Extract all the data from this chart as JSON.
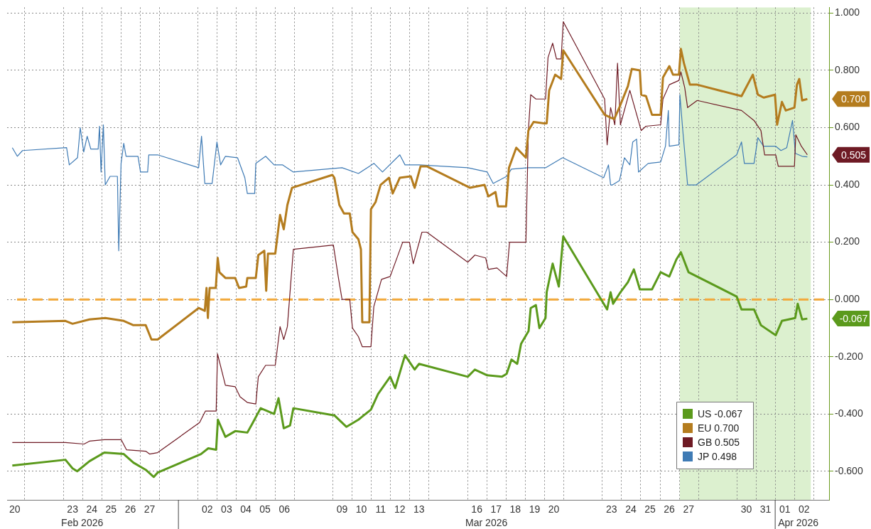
{
  "chart_data": {
    "type": "line",
    "xlim": [
      "2026-02-20T02:24",
      "2026-04-03T19:12"
    ],
    "xticks": [
      {
        "value": "2026-02-20T12:00",
        "label": "20"
      },
      {
        "value": "2026-02-23T12:00",
        "label": "23"
      },
      {
        "value": "2026-02-24T12:00",
        "label": "24"
      },
      {
        "value": "2026-02-25T12:00",
        "label": "25"
      },
      {
        "value": "2026-02-26T12:00",
        "label": "26"
      },
      {
        "value": "2026-02-27T12:00",
        "label": "27"
      },
      {
        "value": "2026-03-02T12:00",
        "label": "02"
      },
      {
        "value": "2026-03-03T12:00",
        "label": "03"
      },
      {
        "value": "2026-03-04T12:00",
        "label": "04"
      },
      {
        "value": "2026-03-05T12:00",
        "label": "05"
      },
      {
        "value": "2026-03-06T12:00",
        "label": "06"
      },
      {
        "value": "2026-03-09T12:00",
        "label": "09"
      },
      {
        "value": "2026-03-10T12:00",
        "label": "10"
      },
      {
        "value": "2026-03-11T12:00",
        "label": "11"
      },
      {
        "value": "2026-03-12T12:00",
        "label": "12"
      },
      {
        "value": "2026-03-13T12:00",
        "label": "13"
      },
      {
        "value": "2026-03-16T12:00",
        "label": "16"
      },
      {
        "value": "2026-03-17T12:00",
        "label": "17"
      },
      {
        "value": "2026-03-18T12:00",
        "label": "18"
      },
      {
        "value": "2026-03-19T12:00",
        "label": "19"
      },
      {
        "value": "2026-03-20T12:00",
        "label": "20"
      },
      {
        "value": "2026-03-23T12:00",
        "label": "23"
      },
      {
        "value": "2026-03-24T12:00",
        "label": "24"
      },
      {
        "value": "2026-03-25T12:00",
        "label": "25"
      },
      {
        "value": "2026-03-26T12:00",
        "label": "26"
      },
      {
        "value": "2026-03-27T12:00",
        "label": "27"
      },
      {
        "value": "2026-03-30T12:00",
        "label": "30"
      },
      {
        "value": "2026-03-31T12:00",
        "label": "31"
      },
      {
        "value": "2026-04-01T12:00",
        "label": "01"
      },
      {
        "value": "2026-04-02T12:00",
        "label": "02"
      }
    ],
    "ylim": [
      -0.7,
      1.02
    ],
    "yticks": [
      {
        "value": -0.6,
        "label": "-0.600"
      },
      {
        "value": -0.4,
        "label": "-0.400"
      },
      {
        "value": -0.2,
        "label": "-0.200"
      },
      {
        "value": 0,
        "label": "0.000"
      },
      {
        "value": 0.2,
        "label": "0.200"
      },
      {
        "value": 0.4,
        "label": "0.400"
      },
      {
        "value": 0.6,
        "label": "0.600"
      },
      {
        "value": 0.8,
        "label": "0.800"
      },
      {
        "value": 1,
        "label": "1.000"
      }
    ],
    "grid": true,
    "legend": "bottom right",
    "marker": "none",
    "series": [
      {
        "name": "US -0.067",
        "color": "#5b9a1c",
        "x": [
          "2026-02-20T08:53",
          "2026-02-23T03:07",
          "2026-02-23T12:00",
          "2026-02-23T17:46",
          "2026-02-24T09:07",
          "2026-02-25T03:36",
          "2026-02-26T03:50",
          "2026-02-26T15:50",
          "2026-02-27T07:12",
          "2026-02-27T17:17",
          "2026-02-27T22:05",
          "2026-03-02T04:05",
          "2026-03-02T13:12",
          "2026-03-02T23:02",
          "2026-03-03T01:12",
          "2026-03-03T10:34",
          "2026-03-03T22:48",
          "2026-03-04T13:55",
          "2026-03-04T19:55",
          "2026-03-05T06:29",
          "2026-03-05T23:17",
          "2026-03-06T04:48",
          "2026-03-06T11:17",
          "2026-03-06T19:12",
          "2026-03-06T23:17",
          "2026-03-09T02:24",
          "2026-03-09T17:31",
          "2026-03-10T08:24",
          "2026-03-11T00:00",
          "2026-03-11T08:53",
          "2026-03-12T00:00",
          "2026-03-12T06:14",
          "2026-03-12T18:29",
          "2026-03-13T06:29",
          "2026-03-13T12:00",
          "2026-03-16T00:43",
          "2026-03-16T09:36",
          "2026-03-17T00:58",
          "2026-03-17T19:12",
          "2026-03-18T01:12",
          "2026-03-18T07:12",
          "2026-03-18T14:24",
          "2026-03-18T19:12",
          "2026-03-19T04:34",
          "2026-03-19T07:12",
          "2026-03-19T13:41",
          "2026-03-19T18:00",
          "2026-03-20T01:41",
          "2026-03-20T03:07",
          "2026-03-20T10:34",
          "2026-03-20T18:14",
          "2026-03-20T23:46",
          "2026-03-23T01:12",
          "2026-03-23T06:29",
          "2026-03-23T10:48",
          "2026-03-23T13:55",
          "2026-03-23T23:02",
          "2026-03-24T08:24",
          "2026-03-24T15:50",
          "2026-03-24T23:17",
          "2026-03-25T14:24",
          "2026-03-26T01:12",
          "2026-03-26T12:00",
          "2026-03-26T20:53",
          "2026-03-27T02:24",
          "2026-03-27T12:00",
          "2026-03-30T00:00",
          "2026-03-30T06:00",
          "2026-03-30T21:36",
          "2026-03-31T06:14",
          "2026-04-01T00:43",
          "2026-04-01T08:24",
          "2026-04-02T00:58",
          "2026-04-02T04:05",
          "2026-04-02T09:36",
          "2026-04-02T16:05"
        ],
        "values": [
          -0.58,
          -0.56,
          -0.59,
          -0.6,
          -0.565,
          -0.535,
          -0.54,
          -0.57,
          -0.595,
          -0.62,
          -0.605,
          -0.54,
          -0.52,
          -0.525,
          -0.42,
          -0.48,
          -0.46,
          -0.465,
          -0.435,
          -0.38,
          -0.4,
          -0.345,
          -0.45,
          -0.44,
          -0.38,
          -0.405,
          -0.445,
          -0.42,
          -0.385,
          -0.33,
          -0.27,
          -0.31,
          -0.195,
          -0.245,
          -0.225,
          -0.27,
          -0.245,
          -0.265,
          -0.27,
          -0.26,
          -0.21,
          -0.225,
          -0.155,
          -0.11,
          -0.03,
          -0.02,
          -0.1,
          -0.065,
          0.025,
          0.125,
          0.045,
          0.22,
          -0.01,
          -0.035,
          0.025,
          -0.015,
          0.025,
          0.06,
          0.105,
          0.035,
          0.035,
          0.095,
          0.08,
          0.14,
          0.165,
          0.095,
          0.01,
          -0.035,
          -0.035,
          -0.09,
          -0.125,
          -0.075,
          -0.065,
          -0.015,
          -0.07,
          -0.067
        ]
      },
      {
        "name": "EU 0.700",
        "color": "#b47c1e",
        "x": [
          "2026-02-20T08:53",
          "2026-02-23T03:07",
          "2026-02-23T12:00",
          "2026-02-24T09:07",
          "2026-02-25T04:48",
          "2026-02-26T03:50",
          "2026-02-26T15:50",
          "2026-02-27T07:12",
          "2026-02-27T14:24",
          "2026-02-27T22:05",
          "2026-03-02T01:12",
          "2026-03-02T08:53",
          "2026-03-02T11:02",
          "2026-03-02T12:43",
          "2026-03-02T14:53",
          "2026-03-02T22:34",
          "2026-03-03T00:58",
          "2026-03-03T03:07",
          "2026-03-03T10:34",
          "2026-03-03T22:48",
          "2026-03-04T03:36",
          "2026-03-04T12:29",
          "2026-03-04T13:55",
          "2026-03-05T00:29",
          "2026-03-05T03:36",
          "2026-03-05T11:02",
          "2026-03-05T13:26",
          "2026-03-05T15:36",
          "2026-03-06T00:43",
          "2026-03-06T06:43",
          "2026-03-06T11:17",
          "2026-03-06T15:50",
          "2026-03-06T21:36",
          "2026-03-09T00:00",
          "2026-03-09T02:24",
          "2026-03-09T08:38",
          "2026-03-09T14:24",
          "2026-03-09T21:36",
          "2026-03-10T00:58",
          "2026-03-10T08:24",
          "2026-03-10T11:31",
          "2026-03-10T13:12",
          "2026-03-10T22:05",
          "2026-03-11T00:00",
          "2026-03-11T05:46",
          "2026-03-11T12:00",
          "2026-03-11T22:34",
          "2026-03-12T03:07",
          "2026-03-12T12:00",
          "2026-03-13T01:41",
          "2026-03-13T06:29",
          "2026-03-13T13:55",
          "2026-03-13T21:36",
          "2026-03-16T03:36",
          "2026-03-16T21:36",
          "2026-03-17T02:24",
          "2026-03-17T11:17",
          "2026-03-17T14:24",
          "2026-03-18T00:29",
          "2026-03-18T04:05",
          "2026-03-18T13:12",
          "2026-03-19T01:12",
          "2026-03-19T04:19",
          "2026-03-19T10:48",
          "2026-03-20T00:00",
          "2026-03-20T03:07",
          "2026-03-20T06:14",
          "2026-03-20T13:41",
          "2026-03-20T21:07",
          "2026-03-20T23:46",
          "2026-03-23T03:22",
          "2026-03-23T10:48",
          "2026-03-23T15:22",
          "2026-03-23T21:36",
          "2026-03-24T08:24",
          "2026-03-24T13:12",
          "2026-03-24T23:17",
          "2026-03-25T00:58",
          "2026-03-25T06:58",
          "2026-03-25T14:24",
          "2026-03-26T01:12",
          "2026-03-26T04:05",
          "2026-03-26T12:00",
          "2026-03-26T16:34",
          "2026-03-27T00:00",
          "2026-03-27T02:24",
          "2026-03-27T06:14",
          "2026-03-27T13:41",
          "2026-03-27T22:48",
          "2026-03-30T06:00",
          "2026-03-30T20:10",
          "2026-03-31T02:24",
          "2026-03-31T09:36",
          "2026-03-31T23:46",
          "2026-04-01T02:24",
          "2026-04-01T08:24",
          "2026-04-01T13:12",
          "2026-04-02T00:00",
          "2026-04-02T03:07",
          "2026-04-02T06:00",
          "2026-04-02T09:36",
          "2026-04-02T16:05"
        ],
        "values": [
          -0.08,
          -0.075,
          -0.085,
          -0.07,
          -0.065,
          -0.075,
          -0.09,
          -0.09,
          -0.14,
          -0.14,
          -0.03,
          -0.04,
          0.04,
          -0.065,
          0.04,
          0.04,
          0.145,
          0.095,
          0.075,
          0.075,
          0.04,
          0.045,
          0.075,
          0.075,
          0.155,
          0.17,
          0.03,
          0.16,
          0.16,
          0.295,
          0.245,
          0.33,
          0.39,
          0.435,
          0.425,
          0.33,
          0.3,
          0.3,
          0.235,
          0.21,
          0.175,
          -0.08,
          -0.08,
          0.315,
          0.34,
          0.4,
          0.425,
          0.37,
          0.425,
          0.43,
          0.39,
          0.465,
          0.465,
          0.39,
          0.4,
          0.36,
          0.375,
          0.325,
          0.325,
          0.46,
          0.53,
          0.495,
          0.59,
          0.62,
          0.615,
          0.615,
          0.73,
          0.785,
          0.77,
          0.87,
          0.645,
          0.635,
          0.63,
          0.67,
          0.745,
          0.805,
          0.8,
          0.715,
          0.71,
          0.645,
          0.645,
          0.775,
          0.815,
          0.785,
          0.785,
          0.875,
          0.825,
          0.75,
          0.75,
          0.71,
          0.785,
          0.715,
          0.705,
          0.715,
          0.61,
          0.69,
          0.66,
          0.67,
          0.75,
          0.77,
          0.695,
          0.7
        ]
      },
      {
        "name": "GB 0.505",
        "color": "#6e1a24",
        "x": [
          "2026-02-20T08:53",
          "2026-02-23T03:07",
          "2026-02-24T02:24",
          "2026-02-24T09:07",
          "2026-02-25T03:36",
          "2026-02-26T00:43",
          "2026-02-26T07:12",
          "2026-02-27T07:12",
          "2026-02-27T12:00",
          "2026-02-27T22:05",
          "2026-03-02T02:24",
          "2026-03-02T09:36",
          "2026-03-02T23:02",
          "2026-03-03T00:43",
          "2026-03-03T10:34",
          "2026-03-03T22:48",
          "2026-03-04T04:48",
          "2026-03-04T13:55",
          "2026-03-05T00:29",
          "2026-03-05T03:36",
          "2026-03-05T12:43",
          "2026-03-06T00:43",
          "2026-03-06T06:43",
          "2026-03-06T11:17",
          "2026-03-06T15:50",
          "2026-03-06T23:17",
          "2026-03-09T01:12",
          "2026-03-09T07:12",
          "2026-03-09T12:00",
          "2026-03-09T21:36",
          "2026-03-10T00:58",
          "2026-03-10T08:24",
          "2026-03-10T13:12",
          "2026-03-11T00:00",
          "2026-03-11T03:36",
          "2026-03-11T13:12",
          "2026-03-12T00:00",
          "2026-03-12T15:36",
          "2026-03-13T00:00",
          "2026-03-13T04:48",
          "2026-03-13T15:36",
          "2026-03-13T21:36",
          "2026-03-16T00:43",
          "2026-03-16T09:36",
          "2026-03-16T23:02",
          "2026-03-17T02:24",
          "2026-03-17T13:12",
          "2026-03-18T01:12",
          "2026-03-18T04:48",
          "2026-03-19T01:12",
          "2026-03-19T04:19",
          "2026-03-19T07:12",
          "2026-03-19T13:41",
          "2026-03-20T01:41",
          "2026-03-20T04:48",
          "2026-03-20T10:34",
          "2026-03-20T15:22",
          "2026-03-20T21:07",
          "2026-03-20T23:46",
          "2026-03-23T03:22",
          "2026-03-23T06:29",
          "2026-03-23T10:48",
          "2026-03-23T16:05",
          "2026-03-23T19:26",
          "2026-03-23T23:02",
          "2026-03-24T10:48",
          "2026-03-25T00:58",
          "2026-03-25T06:58",
          "2026-03-26T01:12",
          "2026-03-26T04:05",
          "2026-03-26T12:00",
          "2026-03-27T00:00",
          "2026-03-27T02:24",
          "2026-03-27T07:12",
          "2026-03-27T10:48",
          "2026-03-27T22:48",
          "2026-03-30T06:00",
          "2026-03-30T21:36",
          "2026-03-31T06:14",
          "2026-03-31T10:48",
          "2026-04-01T00:43",
          "2026-04-01T03:50",
          "2026-04-02T00:00",
          "2026-04-02T01:41",
          "2026-04-02T08:38",
          "2026-04-02T16:05"
        ],
        "values": [
          -0.5,
          -0.5,
          -0.505,
          -0.495,
          -0.49,
          -0.49,
          -0.525,
          -0.53,
          -0.54,
          -0.535,
          -0.43,
          -0.39,
          -0.39,
          -0.19,
          -0.3,
          -0.305,
          -0.34,
          -0.36,
          -0.365,
          -0.27,
          -0.23,
          -0.23,
          -0.095,
          -0.14,
          -0.095,
          0.175,
          0.19,
          0.08,
          0,
          0,
          -0.1,
          -0.13,
          -0.165,
          -0.165,
          -0.025,
          0.07,
          0.08,
          0.2,
          0.2,
          0.125,
          0.235,
          0.235,
          0.13,
          0.155,
          0.145,
          0.105,
          0.11,
          0.08,
          0.2,
          0.2,
          0.59,
          0.715,
          0.7,
          0.7,
          0.845,
          0.895,
          0.84,
          0.84,
          0.97,
          0.7,
          0.54,
          0.67,
          0.61,
          0.825,
          0.61,
          0.73,
          0.59,
          0.605,
          0.61,
          0.7,
          0.75,
          0.765,
          0.795,
          0.74,
          0.67,
          0.695,
          0.66,
          0.625,
          0.59,
          0.505,
          0.505,
          0.465,
          0.465,
          0.575,
          0.535,
          0.505
        ]
      },
      {
        "name": "JP 0.498",
        "color": "#3f7bb5",
        "x": [
          "2026-02-20T08:53",
          "2026-02-20T15:07",
          "2026-02-20T21:36",
          "2026-02-23T04:34",
          "2026-02-23T07:55",
          "2026-02-23T18:14",
          "2026-02-23T21:36",
          "2026-02-24T01:55",
          "2026-02-24T06:14",
          "2026-02-24T10:48",
          "2026-02-24T19:55",
          "2026-02-24T21:36",
          "2026-02-24T23:31",
          "2026-02-25T02:24",
          "2026-02-25T04:48",
          "2026-02-25T10:48",
          "2026-02-25T19:55",
          "2026-02-25T21:36",
          "2026-02-26T00:29",
          "2026-02-26T03:50",
          "2026-02-26T06:43",
          "2026-02-26T21:36",
          "2026-02-27T00:43",
          "2026-02-27T09:36",
          "2026-02-27T11:02",
          "2026-02-27T22:05",
          "2026-03-02T01:12",
          "2026-03-02T04:48",
          "2026-03-02T08:53",
          "2026-03-02T18:00",
          "2026-03-03T00:00",
          "2026-03-03T04:34",
          "2026-03-03T10:34",
          "2026-03-04T01:41",
          "2026-03-04T10:48",
          "2026-03-04T13:55",
          "2026-03-04T23:02",
          "2026-03-05T00:29",
          "2026-03-05T12:43",
          "2026-03-05T23:17",
          "2026-03-06T09:36",
          "2026-03-06T23:17",
          "2026-03-09T12:00",
          "2026-03-10T08:24",
          "2026-03-11T03:50",
          "2026-03-11T14:24",
          "2026-03-12T12:00",
          "2026-03-12T18:29",
          "2026-03-13T12:00",
          "2026-03-16T00:43",
          "2026-03-17T00:58",
          "2026-03-17T08:24",
          "2026-03-18T01:12",
          "2026-03-18T07:12",
          "2026-03-19T04:19",
          "2026-03-20T01:41",
          "2026-03-20T23:02",
          "2026-03-23T02:10",
          "2026-03-23T08:10",
          "2026-03-23T10:48",
          "2026-03-23T13:12",
          "2026-03-23T21:50",
          "2026-03-24T04:05",
          "2026-03-24T10:48",
          "2026-03-24T14:24",
          "2026-03-24T19:12",
          "2026-03-24T21:36",
          "2026-03-25T09:36",
          "2026-03-26T01:12",
          "2026-03-26T07:12",
          "2026-03-26T10:48",
          "2026-03-26T12:00",
          "2026-03-27T00:00",
          "2026-03-27T01:12",
          "2026-03-27T04:48",
          "2026-03-27T10:48",
          "2026-03-27T21:36",
          "2026-03-30T00:00",
          "2026-03-30T06:00",
          "2026-03-30T09:36",
          "2026-03-30T21:36",
          "2026-03-31T02:24",
          "2026-03-31T09:36",
          "2026-04-01T00:43",
          "2026-04-01T07:12",
          "2026-04-01T14:24",
          "2026-04-01T21:36",
          "2026-04-02T01:12",
          "2026-04-02T09:36",
          "2026-04-02T16:05"
        ],
        "values": [
          0.53,
          0.5,
          0.52,
          0.53,
          0.47,
          0.495,
          0.6,
          0.515,
          0.57,
          0.525,
          0.525,
          0.605,
          0.445,
          0.61,
          0.4,
          0.43,
          0.43,
          0.17,
          0.475,
          0.545,
          0.5,
          0.5,
          0.445,
          0.445,
          0.505,
          0.505,
          0.46,
          0.57,
          0.405,
          0.405,
          0.55,
          0.47,
          0.5,
          0.495,
          0.425,
          0.37,
          0.37,
          0.475,
          0.5,
          0.47,
          0.47,
          0.445,
          0.46,
          0.44,
          0.475,
          0.445,
          0.505,
          0.47,
          0.47,
          0.46,
          0.445,
          0.405,
          0.43,
          0.455,
          0.46,
          0.46,
          0.495,
          0.425,
          0.47,
          0.4,
          0.4,
          0.415,
          0.495,
          0.47,
          0.55,
          0.56,
          0.445,
          0.475,
          0.48,
          0.535,
          0.66,
          0.535,
          0.54,
          0.715,
          0.59,
          0.4,
          0.4,
          0.505,
          0.55,
          0.475,
          0.475,
          0.565,
          0.535,
          0.535,
          0.52,
          0.53,
          0.625,
          0.51,
          0.5,
          0.498
        ]
      }
    ],
    "ref_lines": [
      {
        "axis": "y",
        "value": 0,
        "color": "#f2a93b",
        "line_style": "dashed"
      }
    ],
    "bands": [
      {
        "axis": "x",
        "from": "2026-03-27T01:12",
        "to": "2026-04-02T20:24",
        "color": "#dcf0cf"
      }
    ],
    "annotations": [
      "Feb 2026",
      "Mar 2026",
      "Apr 2026",
      "-0.067",
      "0.700",
      "0.505"
    ]
  }
}
